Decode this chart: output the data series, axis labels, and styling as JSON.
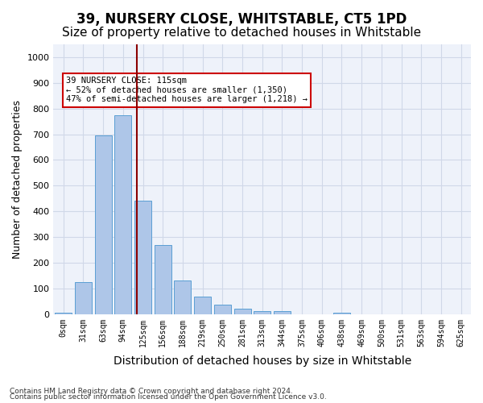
{
  "title": "39, NURSERY CLOSE, WHITSTABLE, CT5 1PD",
  "subtitle": "Size of property relative to detached houses in Whitstable",
  "xlabel": "Distribution of detached houses by size in Whitstable",
  "ylabel": "Number of detached properties",
  "bar_labels": [
    "0sqm",
    "31sqm",
    "63sqm",
    "94sqm",
    "125sqm",
    "156sqm",
    "188sqm",
    "219sqm",
    "250sqm",
    "281sqm",
    "313sqm",
    "344sqm",
    "375sqm",
    "406sqm",
    "438sqm",
    "469sqm",
    "500sqm",
    "531sqm",
    "563sqm",
    "594sqm",
    "625sqm"
  ],
  "bar_values": [
    5,
    125,
    695,
    775,
    440,
    270,
    130,
    68,
    38,
    20,
    12,
    11,
    0,
    0,
    5,
    0,
    0,
    0,
    0,
    0,
    0
  ],
  "bar_color": "#aec6e8",
  "bar_edge_color": "#5a9fd4",
  "grid_color": "#d0d8e8",
  "background_color": "#eef2fa",
  "vline_x": 4,
  "vline_color": "#8b0000",
  "annotation_text": "39 NURSERY CLOSE: 115sqm\n← 52% of detached houses are smaller (1,350)\n47% of semi-detached houses are larger (1,218) →",
  "annotation_box_color": "#ffffff",
  "annotation_box_edge": "#cc0000",
  "ylim": [
    0,
    1050
  ],
  "yticks": [
    0,
    100,
    200,
    300,
    400,
    500,
    600,
    700,
    800,
    900,
    1000
  ],
  "footnote1": "Contains HM Land Registry data © Crown copyright and database right 2024.",
  "footnote2": "Contains public sector information licensed under the Open Government Licence v3.0.",
  "title_fontsize": 12,
  "subtitle_fontsize": 11,
  "xlabel_fontsize": 10,
  "ylabel_fontsize": 9
}
